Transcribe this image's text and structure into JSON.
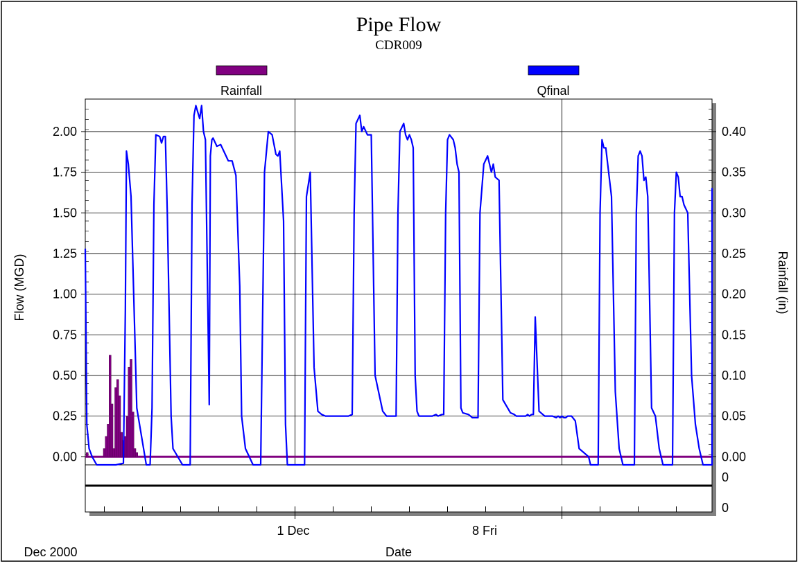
{
  "chart_data": {
    "type": "line",
    "title": "Pipe Flow",
    "subtitle": "CDR009",
    "xlabel": "Date",
    "ylabel": "Flow (MGD)",
    "y2label": "Rainfall (in)",
    "period_label": "Dec 2000",
    "x_tick_labels": [
      "1 Dec",
      "8 Fri"
    ],
    "ylim": [
      -0.05,
      2.2
    ],
    "y2lim": [
      -0.01,
      0.44
    ],
    "y_ticks": [
      "0.00",
      "0.25",
      "0.50",
      "0.75",
      "1.00",
      "1.25",
      "1.50",
      "1.75",
      "2.00"
    ],
    "y2_ticks": [
      "0.00",
      "0.05",
      "0.10",
      "0.15",
      "0.20",
      "0.25",
      "0.30",
      "0.35",
      "0.40"
    ],
    "lower_panel_ticks": [
      "0",
      "0"
    ],
    "grid": true,
    "legend_position": "top",
    "series": [
      {
        "name": "Rainfall",
        "color": "#800080",
        "style": "bars",
        "axis": "right",
        "x": [
          0.05,
          0.5,
          0.55,
          0.6,
          0.65,
          0.7,
          0.75,
          0.8,
          0.85,
          0.9,
          0.95,
          1.0,
          1.05,
          1.1,
          1.15,
          1.2,
          1.25,
          1.3,
          1.35
        ],
        "values": [
          0.005,
          0.01,
          0.025,
          0.04,
          0.125,
          0.065,
          0.01,
          0.085,
          0.095,
          0.075,
          0.03,
          0.02,
          0.025,
          0.05,
          0.11,
          0.12,
          0.055,
          0.01,
          0.005
        ]
      },
      {
        "name": "Qfinal",
        "color": "#0000ff",
        "style": "line",
        "axis": "left",
        "x": [
          0,
          0.04,
          0.1,
          0.18,
          0.3,
          0.5,
          0.8,
          1.0,
          1.05,
          1.08,
          1.13,
          1.2,
          1.35,
          1.6,
          1.7,
          1.75,
          1.8,
          1.85,
          1.95,
          2.0,
          2.05,
          2.1,
          2.15,
          2.25,
          2.3,
          2.55,
          2.7,
          2.75,
          2.8,
          2.85,
          2.9,
          3.0,
          3.05,
          3.1,
          3.15,
          3.25,
          3.28,
          3.32,
          3.35,
          3.45,
          3.55,
          3.65,
          3.75,
          3.85,
          3.95,
          4.05,
          4.1,
          4.2,
          4.4,
          4.5,
          4.6,
          4.7,
          4.8,
          4.9,
          5.0,
          5.05,
          5.1,
          5.2,
          5.25,
          5.3,
          5.5,
          5.5,
          5.52,
          5.6,
          5.7,
          5.75,
          5.8,
          5.9,
          6.0,
          6.1,
          6.2,
          6.3,
          6.4,
          6.5,
          6.6,
          6.9,
          7.0,
          7.05,
          7.1,
          7.2,
          7.25,
          7.3,
          7.4,
          7.5,
          7.6,
          7.8,
          7.9,
          8.0,
          8.1,
          8.15,
          8.2,
          8.25,
          8.35,
          8.4,
          8.45,
          8.5,
          8.55,
          8.6,
          8.65,
          8.7,
          8.75,
          8.8,
          8.85,
          9.1,
          9.2,
          9.25,
          9.35,
          9.4,
          9.45,
          9.5,
          9.55,
          9.65,
          9.7,
          9.75,
          9.8,
          9.85,
          9.9,
          10.05,
          10.15,
          10.2,
          10.25,
          10.3,
          10.35,
          10.45,
          10.55,
          10.65,
          10.7,
          10.75,
          10.85,
          10.95,
          11.15,
          11.25,
          11.3,
          11.35,
          11.45,
          11.5,
          11.55,
          11.6,
          11.65,
          11.7,
          11.75,
          11.8,
          11.9,
          12.0,
          12.05,
          12.25,
          12.35,
          12.4,
          12.45,
          12.5,
          12.55,
          12.6,
          12.65,
          12.75,
          12.85,
          12.95,
          13.2,
          13.25,
          13.35,
          13.4,
          13.45,
          13.5,
          13.55,
          13.6,
          13.65,
          13.7,
          13.8,
          13.9,
          14.0,
          14.1,
          14.2,
          14.35,
          14.4,
          14.45,
          14.5,
          14.55,
          14.6,
          14.65,
          14.7,
          14.75,
          14.85,
          14.95,
          15.05,
          15.15,
          15.3,
          15.35,
          15.4,
          15.45,
          15.5,
          15.55,
          15.6,
          15.65,
          15.7,
          15.8,
          15.9,
          16.0,
          16.1,
          16.2,
          16.35,
          16.4,
          16.5,
          16.55,
          16.6,
          16.65,
          16.7,
          16.75,
          16.8,
          16.9,
          17.0,
          17.05
        ],
        "values": [
          1.28,
          0.2,
          0.05,
          0.0,
          -0.05,
          -0.05,
          -0.05,
          -0.04,
          0.9,
          1.88,
          1.8,
          1.6,
          0.3,
          -0.05,
          -0.05,
          0.3,
          1.55,
          1.98,
          1.97,
          1.93,
          1.97,
          1.97,
          1.5,
          0.25,
          0.05,
          -0.05,
          -0.05,
          -0.05,
          1.55,
          2.1,
          2.16,
          2.08,
          2.16,
          2.0,
          1.95,
          0.32,
          1.85,
          1.95,
          1.96,
          1.91,
          1.92,
          1.87,
          1.82,
          1.82,
          1.73,
          1.05,
          0.25,
          0.05,
          -0.05,
          -0.05,
          -0.05,
          1.75,
          2.0,
          1.98,
          1.86,
          1.85,
          1.88,
          1.45,
          0.2,
          -0.05,
          -0.05,
          -0.05,
          -0.05,
          -0.05,
          -0.05,
          -0.05,
          1.6,
          1.75,
          0.55,
          0.28,
          0.26,
          0.25,
          0.25,
          0.25,
          0.25,
          0.25,
          0.26,
          1.5,
          2.05,
          2.1,
          2.0,
          2.03,
          1.98,
          1.98,
          0.5,
          0.28,
          0.25,
          0.25,
          0.25,
          0.25,
          1.5,
          2.0,
          2.05,
          1.98,
          1.95,
          1.98,
          1.95,
          1.9,
          0.5,
          0.28,
          0.25,
          0.25,
          0.25,
          0.25,
          0.26,
          0.25,
          0.26,
          0.26,
          1.5,
          1.95,
          1.98,
          1.95,
          1.9,
          1.8,
          1.75,
          0.3,
          0.27,
          0.26,
          0.24,
          0.24,
          0.24,
          0.24,
          1.5,
          1.8,
          1.85,
          1.75,
          1.8,
          1.72,
          1.7,
          0.35,
          0.27,
          0.26,
          0.25,
          0.25,
          0.25,
          0.25,
          0.25,
          0.26,
          0.25,
          0.26,
          0.26,
          0.86,
          0.28,
          0.26,
          0.25,
          0.25,
          0.24,
          0.25,
          0.24,
          0.25,
          0.24,
          0.24,
          0.25,
          0.25,
          0.22,
          0.05,
          0.0,
          -0.05,
          -0.05,
          -0.05,
          -0.05,
          1.5,
          1.95,
          1.9,
          1.9,
          1.8,
          1.6,
          0.4,
          0.05,
          -0.05,
          -0.05,
          -0.05,
          -0.05,
          1.5,
          1.85,
          1.88,
          1.85,
          1.7,
          1.72,
          1.6,
          0.3,
          0.25,
          0.05,
          -0.05,
          -0.05,
          -0.05,
          -0.05,
          1.5,
          1.75,
          1.72,
          1.6,
          1.6,
          1.55,
          1.5,
          0.5,
          0.2,
          0.05,
          -0.05,
          -0.05,
          -0.05,
          -0.05,
          1.55,
          1.65,
          1.58,
          1.62,
          1.55,
          0.3,
          0.1,
          -0.05,
          -0.05
        ]
      }
    ]
  }
}
